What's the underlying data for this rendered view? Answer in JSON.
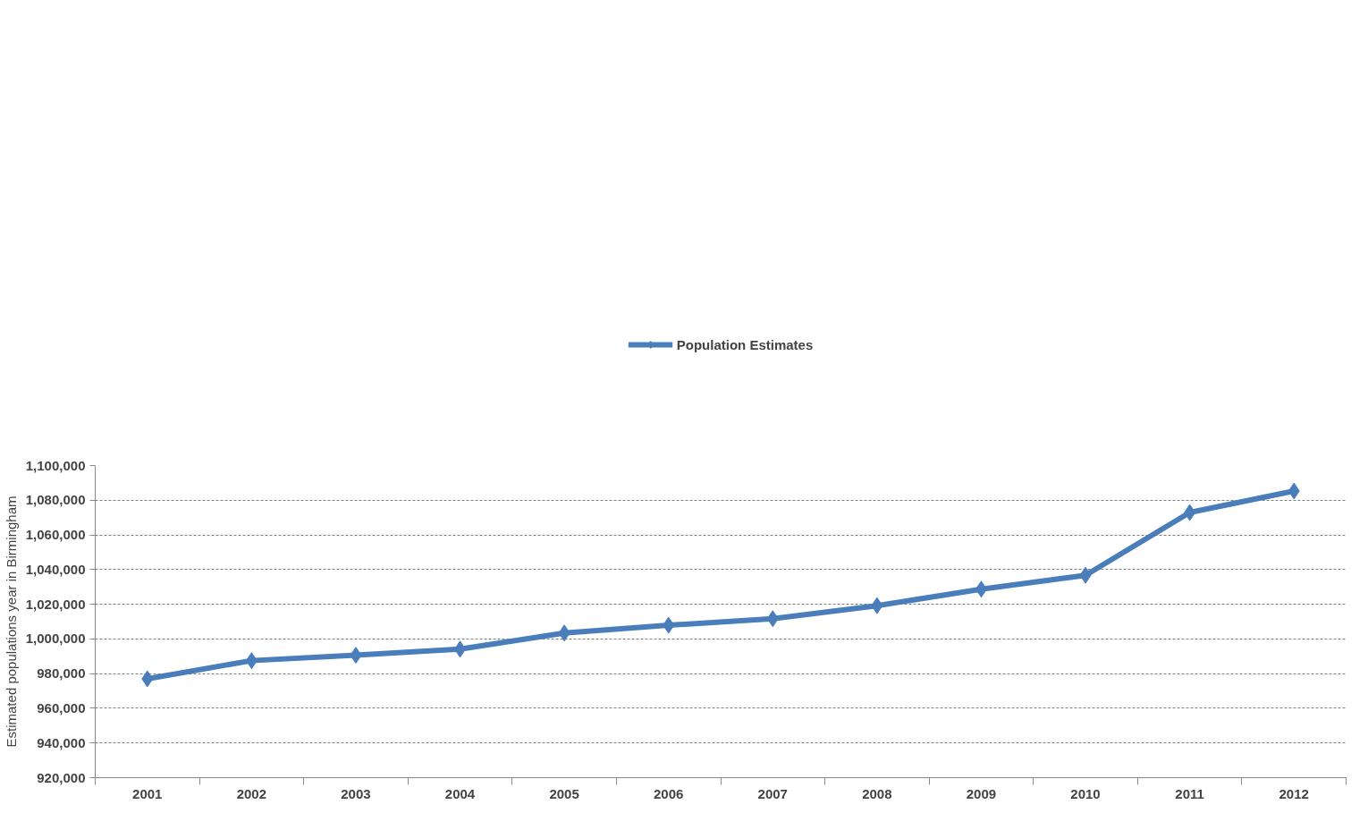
{
  "chart_data": {
    "type": "line",
    "ylabel": "Estimated populations year in Birmingham",
    "categories": [
      "2001",
      "2002",
      "2003",
      "2004",
      "2005",
      "2006",
      "2007",
      "2008",
      "2009",
      "2010",
      "2011",
      "2012"
    ],
    "series": [
      {
        "name": "Population Estimates",
        "color": "#4a7ebb",
        "values": [
          977000,
          987500,
          990600,
          994100,
          1003400,
          1007900,
          1011700,
          1019200,
          1028700,
          1036700,
          1072900,
          1085300
        ]
      }
    ],
    "ylim": [
      920000,
      1100000
    ],
    "yticks": [
      {
        "value": 920000,
        "label": "920,000"
      },
      {
        "value": 940000,
        "label": "940,000"
      },
      {
        "value": 960000,
        "label": "960,000"
      },
      {
        "value": 980000,
        "label": "980,000"
      },
      {
        "value": 1000000,
        "label": "1,000,000"
      },
      {
        "value": 1020000,
        "label": "1,020,000"
      },
      {
        "value": 1040000,
        "label": "1,040,000"
      },
      {
        "value": 1060000,
        "label": "1,060,000"
      },
      {
        "value": 1080000,
        "label": "1,080,000"
      },
      {
        "value": 1100000,
        "label": "1,100,000"
      }
    ],
    "grid": "y",
    "legend": "top",
    "marker": "diamond",
    "line_style": "solid"
  }
}
